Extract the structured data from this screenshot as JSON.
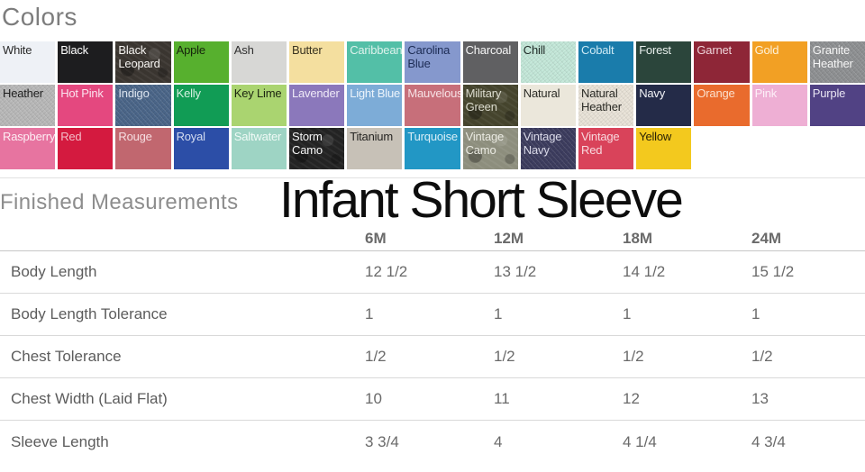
{
  "colors": {
    "heading": "Colors",
    "rows": [
      [
        {
          "label": "White",
          "bg": "#eef1f6",
          "fg": "#2a2a2a"
        },
        {
          "label": "Black",
          "bg": "#1d1d1f",
          "fg": "#ffffff"
        },
        {
          "label": "Black Leopard",
          "bg": "#3a3530",
          "fg": "#f5f3f0",
          "texture": "camo"
        },
        {
          "label": "Apple",
          "bg": "#57b02e",
          "fg": "#16240c"
        },
        {
          "label": "Ash",
          "bg": "#d7d7d5",
          "fg": "#2f2f2f"
        },
        {
          "label": "Butter",
          "bg": "#f4df9f",
          "fg": "#3a3420"
        },
        {
          "label": "Caribbean",
          "bg": "#53bfa7",
          "fg": "#ddf2ec"
        },
        {
          "label": "Carolina Blue",
          "bg": "#8598cd",
          "fg": "#1d2c55"
        },
        {
          "label": "Charcoal",
          "bg": "#606062",
          "fg": "#f5f5f5"
        },
        {
          "label": "Chill",
          "bg": "#c4e8d9",
          "fg": "#1f2a26",
          "texture": "heather"
        },
        {
          "label": "Cobalt",
          "bg": "#1a7cab",
          "fg": "#cde9f4"
        },
        {
          "label": "Forest",
          "bg": "#2b453b",
          "fg": "#e9f0ed"
        },
        {
          "label": "Garnet",
          "bg": "#8e2637",
          "fg": "#eed3d9"
        },
        {
          "label": "Gold",
          "bg": "#f2a024",
          "fg": "#fdf2da"
        },
        {
          "label": "Granite Heather",
          "bg": "#8f9193",
          "fg": "#f4f4f4",
          "texture": "heather"
        }
      ],
      [
        {
          "label": "Heather",
          "bg": "#b9b9b9",
          "fg": "#1e1e1e",
          "texture": "heather"
        },
        {
          "label": "Hot Pink",
          "bg": "#e4487f",
          "fg": "#fbe3ee"
        },
        {
          "label": "Indigo",
          "bg": "#4b6689",
          "fg": "#dbe3ee",
          "texture": "heather"
        },
        {
          "label": "Kelly",
          "bg": "#119c55",
          "fg": "#d5f0e0"
        },
        {
          "label": "Key Lime",
          "bg": "#aad470",
          "fg": "#1c2410"
        },
        {
          "label": "Lavender",
          "bg": "#8b78bb",
          "fg": "#efeaf7"
        },
        {
          "label": "Light Blue",
          "bg": "#7dacd7",
          "fg": "#ecf4fb"
        },
        {
          "label": "Mauvelous",
          "bg": "#c76f7a",
          "fg": "#f7e2e5"
        },
        {
          "label": "Military Green",
          "bg": "#45442d",
          "fg": "#dcdccf",
          "texture": "camo"
        },
        {
          "label": "Natural",
          "bg": "#ebe7db",
          "fg": "#2b2b26"
        },
        {
          "label": "Natural Heather",
          "bg": "#e9e3d8",
          "fg": "#2b2b26",
          "texture": "heather"
        },
        {
          "label": "Navy",
          "bg": "#242b48",
          "fg": "#f2f3f7"
        },
        {
          "label": "Orange",
          "bg": "#e96b2d",
          "fg": "#fbe0cd"
        },
        {
          "label": "Pink",
          "bg": "#eeafd4",
          "fg": "#fdf0f8"
        },
        {
          "label": "Purple",
          "bg": "#514284",
          "fg": "#e9e5f3"
        }
      ],
      [
        {
          "label": "Raspberry",
          "bg": "#e774a0",
          "fg": "#fdeef4"
        },
        {
          "label": "Red",
          "bg": "#d41a3f",
          "fg": "#f3bdc8"
        },
        {
          "label": "Rouge",
          "bg": "#c1676f",
          "fg": "#f6dee1"
        },
        {
          "label": "Royal",
          "bg": "#2c4ea7",
          "fg": "#d4ddf1"
        },
        {
          "label": "Saltwater",
          "bg": "#9ed4c4",
          "fg": "#effaf6"
        },
        {
          "label": "Storm Camo",
          "bg": "#232323",
          "fg": "#f4f4f4",
          "texture": "camo"
        },
        {
          "label": "Titanium",
          "bg": "#c7c1b7",
          "fg": "#262522"
        },
        {
          "label": "Turquoise",
          "bg": "#2297c5",
          "fg": "#d8eef7"
        },
        {
          "label": "Vintage Camo",
          "bg": "#8d8e7d",
          "fg": "#eaeae2",
          "texture": "camo"
        },
        {
          "label": "Vintage Navy",
          "bg": "#3d3d5f",
          "fg": "#d9d9e8",
          "texture": "heather"
        },
        {
          "label": "Vintage Red",
          "bg": "#d9435a",
          "fg": "#f8d9de"
        },
        {
          "label": "Yellow",
          "bg": "#f3c91e",
          "fg": "#2a2206"
        }
      ]
    ]
  },
  "measurements": {
    "heading": "Finished Measurements",
    "overlay_title": "Infant Short Sleeve",
    "table": {
      "size_columns": [
        "6M",
        "12M",
        "18M",
        "24M"
      ],
      "rows": [
        {
          "label": "Body Length",
          "values": [
            "12 1/2",
            "13 1/2",
            "14 1/2",
            "15 1/2"
          ]
        },
        {
          "label": "Body Length Tolerance",
          "values": [
            "1",
            "1",
            "1",
            "1"
          ]
        },
        {
          "label": "Chest Tolerance",
          "values": [
            "1/2",
            "1/2",
            "1/2",
            "1/2"
          ]
        },
        {
          "label": "Chest Width (Laid Flat)",
          "values": [
            "10",
            "11",
            "12",
            "13"
          ]
        },
        {
          "label": "Sleeve Length",
          "values": [
            "3 3/4",
            "4",
            "4 1/4",
            "4 3/4"
          ]
        }
      ]
    }
  }
}
